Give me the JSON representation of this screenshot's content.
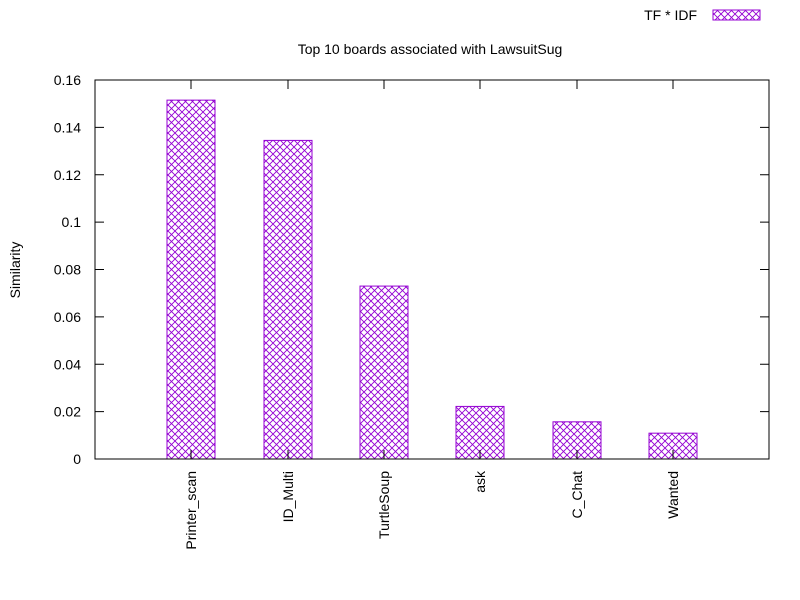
{
  "chart_data": {
    "type": "bar",
    "title": "Top 10 boards associated with LawsuitSug",
    "xlabel": "",
    "ylabel": "Similarity",
    "categories": [
      "Printer_scan",
      "ID_Multi",
      "TurtleSoup",
      "ask",
      "C_Chat",
      "Wanted"
    ],
    "series": [
      {
        "name": "TF * IDF",
        "values": [
          0.1515,
          0.1345,
          0.073,
          0.0222,
          0.0157,
          0.0109
        ]
      }
    ],
    "ylim": [
      0,
      0.16
    ],
    "yticks": [
      0,
      0.02,
      0.04,
      0.06,
      0.08,
      0.1,
      0.12,
      0.14,
      0.16
    ],
    "ytick_labels": [
      "0",
      "0.02",
      "0.04",
      "0.06",
      "0.08",
      "0.1",
      "0.12",
      "0.14",
      "0.16"
    ],
    "legend_position": "top-right",
    "grid": false,
    "bar_color": "#9400d3",
    "bar_pattern": "crosshatch"
  }
}
